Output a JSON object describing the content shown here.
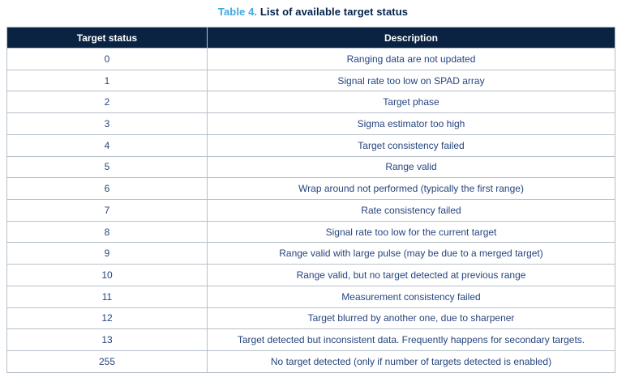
{
  "caption": {
    "label": "Table 4.",
    "title": "List of available target status"
  },
  "colors": {
    "caption_label_blue": "#3FA9DF",
    "caption_title_navy": "#03234B",
    "header_bg": "#0B2343",
    "header_text": "#FFFFFF",
    "body_text": "#26457E",
    "border": "#B6C0CA"
  },
  "table": {
    "columns": [
      {
        "label": "Target status"
      },
      {
        "label": "Description"
      }
    ],
    "rows": [
      {
        "status": "0",
        "description": "Ranging data are not updated"
      },
      {
        "status": "1",
        "description": "Signal rate too low on SPAD array"
      },
      {
        "status": "2",
        "description": "Target phase"
      },
      {
        "status": "3",
        "description": "Sigma estimator too high"
      },
      {
        "status": "4",
        "description": "Target consistency failed"
      },
      {
        "status": "5",
        "description": "Range valid"
      },
      {
        "status": "6",
        "description": "Wrap around not performed (typically the first range)"
      },
      {
        "status": "7",
        "description": "Rate consistency failed"
      },
      {
        "status": "8",
        "description": "Signal rate too low for the current target"
      },
      {
        "status": "9",
        "description": "Range valid with large pulse (may be due to a merged target)"
      },
      {
        "status": "10",
        "description": "Range valid, but no target detected at previous range"
      },
      {
        "status": "11",
        "description": "Measurement consistency failed"
      },
      {
        "status": "12",
        "description": "Target blurred by another one, due to sharpener"
      },
      {
        "status": "13",
        "description": "Target detected but inconsistent data. Frequently happens for secondary targets."
      },
      {
        "status": "255",
        "description": "No target detected (only if number of targets detected is enabled)"
      }
    ]
  }
}
